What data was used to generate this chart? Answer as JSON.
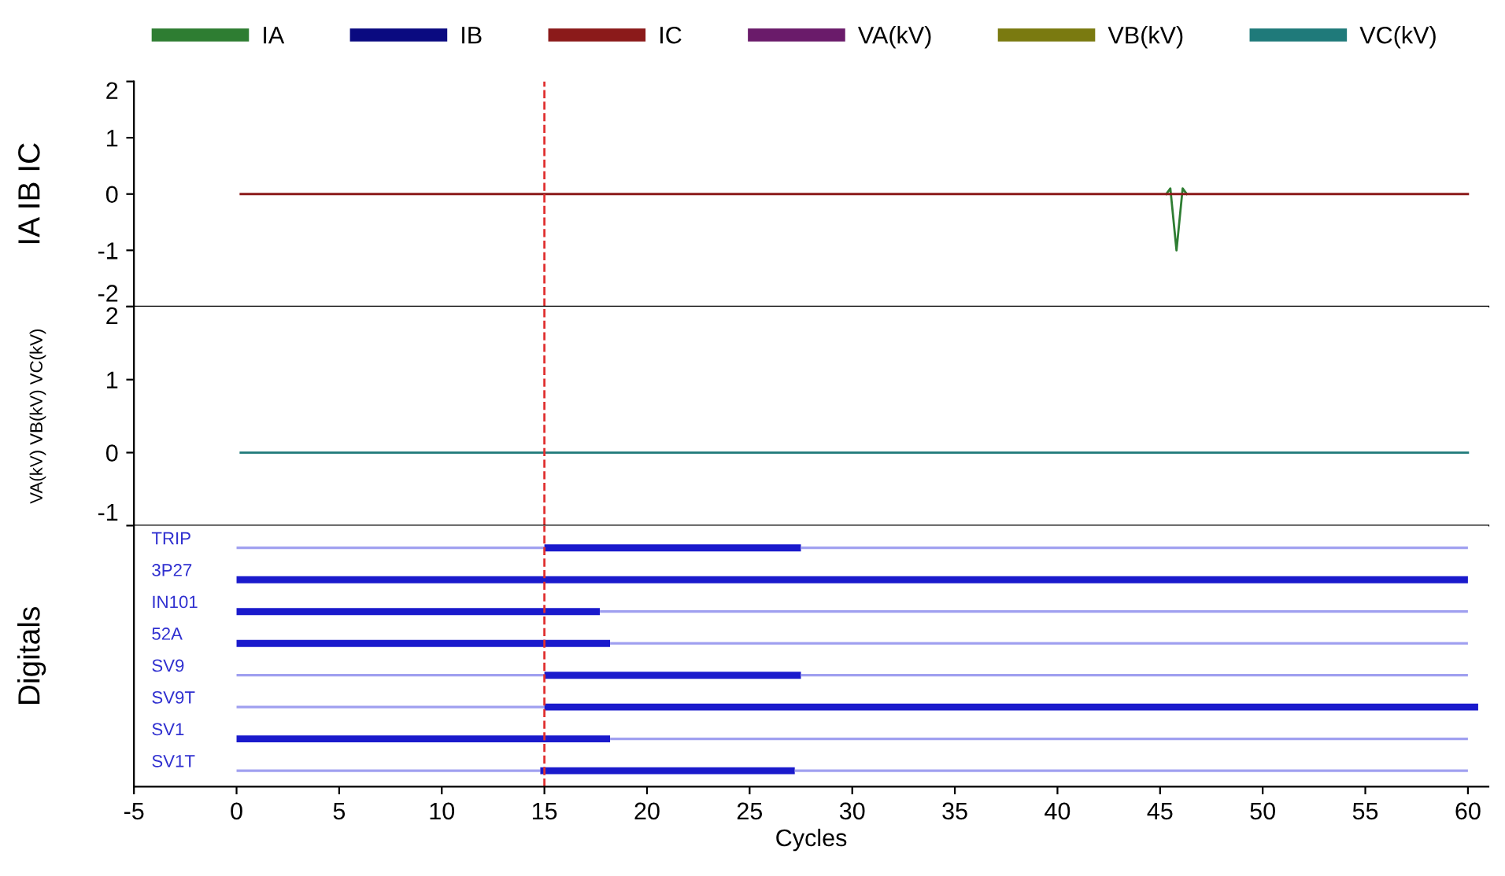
{
  "chart_data": [
    {
      "type": "line",
      "ylabel": "IA IB IC",
      "xlim": [
        -5,
        61
      ],
      "ylim": [
        -2,
        2
      ],
      "yticks": [
        -2,
        -1,
        0,
        1,
        2
      ],
      "tick_labels": "y",
      "legend": "top",
      "grid": false,
      "series": [
        {
          "name": "IA",
          "color": "#2e7d32",
          "x": [
            45.3,
            45.5,
            45.8,
            46.1,
            46.3
          ],
          "values": [
            0,
            0.1,
            -1,
            0.1,
            0
          ]
        },
        {
          "name": "IB",
          "color": "#0a0a80",
          "values": [
            null,
            null
          ]
        },
        {
          "name": "IC",
          "color": "#8b1a1a",
          "x": [
            0.2,
            60
          ],
          "values": [
            0,
            0
          ]
        }
      ],
      "ref_lines": [
        {
          "axis": "x",
          "value": 15,
          "color": "#e03030",
          "line_style": "dashed"
        }
      ]
    },
    {
      "type": "line",
      "ylabel": "VA(kV) VB(kV) VC(kV)",
      "xlim": [
        -5,
        61
      ],
      "ylim": [
        -1,
        2
      ],
      "yticks": [
        -1,
        0,
        1,
        2
      ],
      "tick_labels": "y",
      "legend": "top",
      "grid": false,
      "series": [
        {
          "name": "VA(kV)",
          "color": "#6a1b6a",
          "values": [
            null,
            null
          ]
        },
        {
          "name": "VB(kV)",
          "color": "#7a7a10",
          "values": [
            null,
            null
          ]
        },
        {
          "name": "VC(kV)",
          "color": "#1f7a7a",
          "x": [
            0.2,
            60
          ],
          "values": [
            0,
            0
          ]
        }
      ],
      "ref_lines": [
        {
          "axis": "x",
          "value": 15,
          "color": "#e03030",
          "line_style": "dashed"
        }
      ]
    },
    {
      "type": "bar",
      "orientation": "horizontal",
      "stacked": true,
      "ylabel": "Digitals",
      "xlabel": "Cycles",
      "xlim": [
        -5,
        61
      ],
      "xticks": [
        -5,
        0,
        5,
        10,
        15,
        20,
        25,
        30,
        35,
        40,
        45,
        50,
        55,
        60
      ],
      "grid": false,
      "categories": [
        "TRIP",
        "3P27",
        "IN101",
        "52A",
        "SV9",
        "SV9T",
        "SV1",
        "SV1T"
      ],
      "series": [
        {
          "color": "#a0a0f0",
          "values": [
            15,
            0,
            0,
            0,
            15,
            15,
            0,
            14.8
          ]
        },
        {
          "color": "#1a1acc",
          "values": [
            12.5,
            60,
            17.7,
            18.2,
            12.5,
            45.5,
            18.2,
            12.4
          ]
        },
        {
          "color": "#a0a0f0",
          "values": [
            32.5,
            0,
            42.3,
            41.8,
            32.5,
            0,
            41.8,
            32.8
          ]
        }
      ],
      "ref_lines": [
        {
          "axis": "x",
          "value": 15,
          "color": "#e03030",
          "line_style": "dashed"
        }
      ]
    }
  ]
}
